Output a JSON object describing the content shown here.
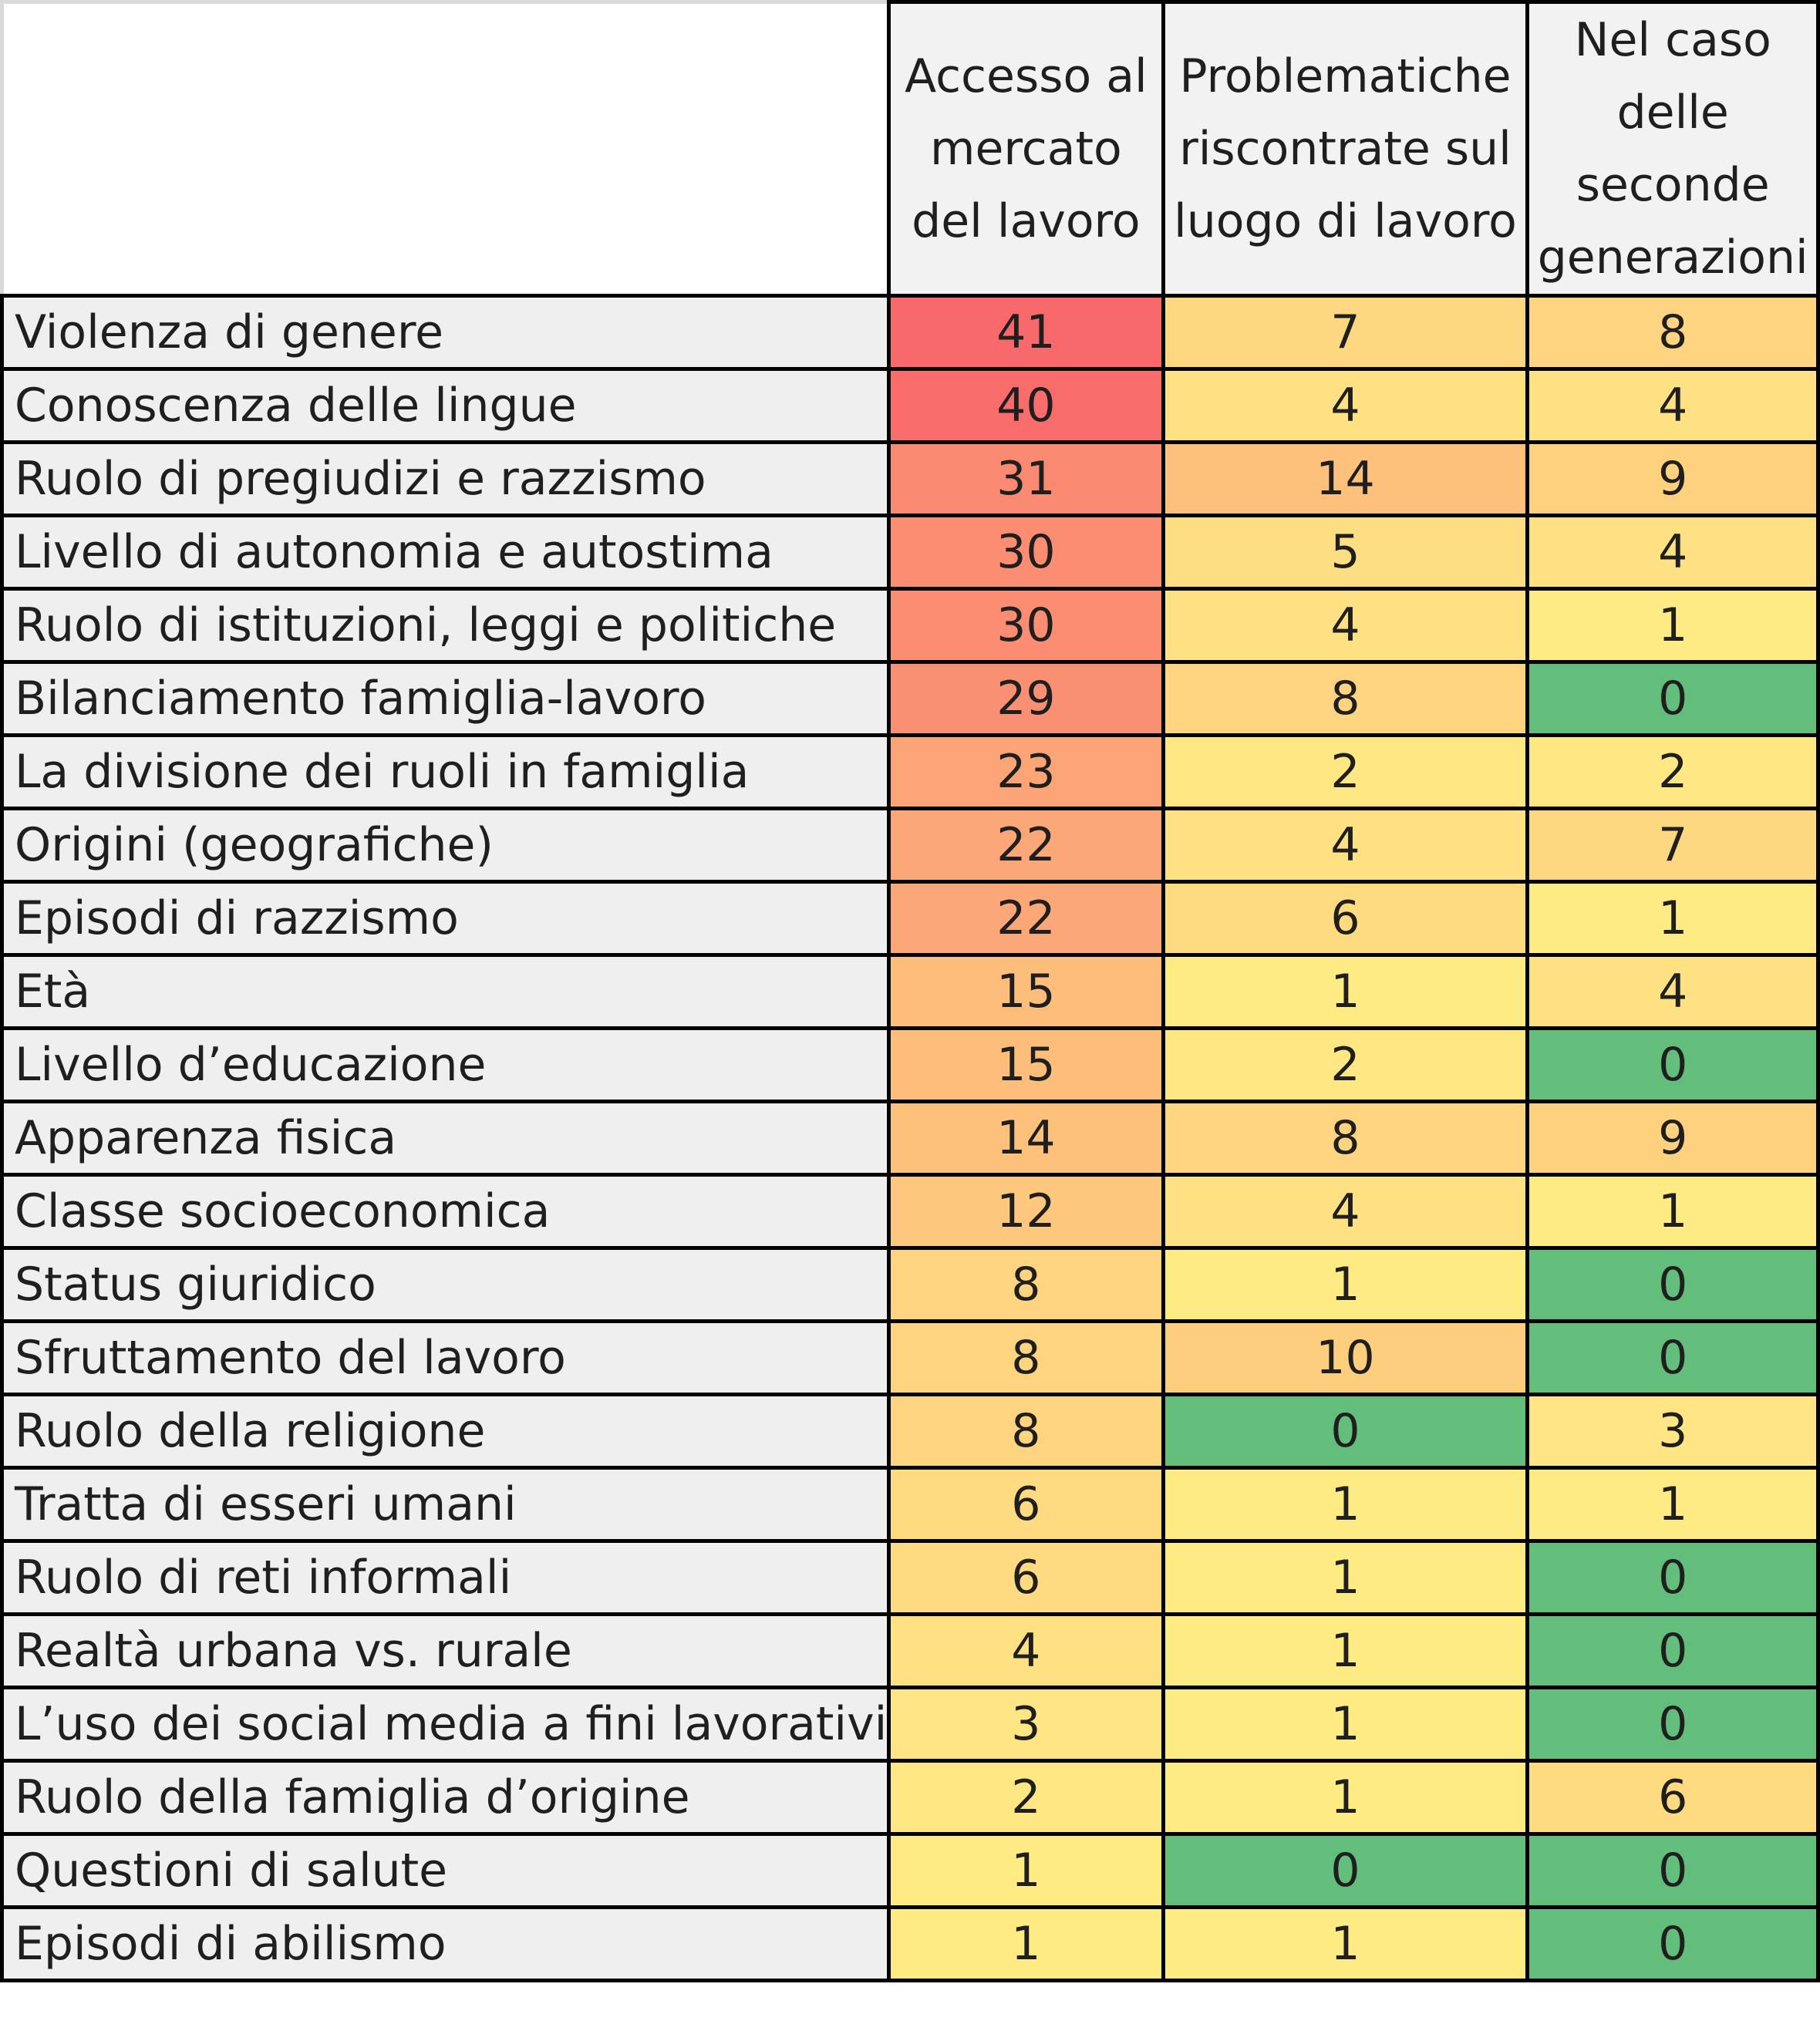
{
  "chart_data": {
    "type": "heatmap",
    "columns": [
      "Accesso al mercato del lavoro",
      "Problematiche riscontrate sul luogo di lavoro",
      "Nel caso delle seconde generazioni"
    ],
    "rows": [
      {
        "label": "Violenza di genere",
        "values": [
          41,
          7,
          8
        ]
      },
      {
        "label": "Conoscenza delle lingue",
        "values": [
          40,
          4,
          4
        ]
      },
      {
        "label": "Ruolo di pregiudizi e razzismo",
        "values": [
          31,
          14,
          9
        ]
      },
      {
        "label": "Livello di autonomia e autostima",
        "values": [
          30,
          5,
          4
        ]
      },
      {
        "label": "Ruolo di istituzioni, leggi e politiche",
        "values": [
          30,
          4,
          1
        ]
      },
      {
        "label": "Bilanciamento famiglia-lavoro",
        "values": [
          29,
          8,
          0
        ]
      },
      {
        "label": "La divisione dei ruoli in famiglia",
        "values": [
          23,
          2,
          2
        ]
      },
      {
        "label": "Origini (geografiche)",
        "values": [
          22,
          4,
          7
        ]
      },
      {
        "label": "Episodi di razzismo",
        "values": [
          22,
          6,
          1
        ]
      },
      {
        "label": "Età",
        "values": [
          15,
          1,
          4
        ]
      },
      {
        "label": "Livello d’educazione",
        "values": [
          15,
          2,
          0
        ]
      },
      {
        "label": "Apparenza fisica",
        "values": [
          14,
          8,
          9
        ]
      },
      {
        "label": "Classe socioeconomica",
        "values": [
          12,
          4,
          1
        ]
      },
      {
        "label": "Status giuridico",
        "values": [
          8,
          1,
          0
        ]
      },
      {
        "label": "Sfruttamento del lavoro",
        "values": [
          8,
          10,
          0
        ]
      },
      {
        "label": "Ruolo della religione",
        "values": [
          8,
          0,
          3
        ]
      },
      {
        "label": "Tratta di esseri umani",
        "values": [
          6,
          1,
          1
        ]
      },
      {
        "label": "Ruolo di reti informali",
        "values": [
          6,
          1,
          0
        ]
      },
      {
        "label": "Realtà urbana vs. rurale",
        "values": [
          4,
          1,
          0
        ]
      },
      {
        "label": "L’uso dei social media a fini lavorativi",
        "values": [
          3,
          1,
          0
        ]
      },
      {
        "label": "Ruolo della famiglia d’origine",
        "values": [
          2,
          1,
          6
        ]
      },
      {
        "label": "Questioni di salute",
        "values": [
          1,
          0,
          0
        ]
      },
      {
        "label": "Episodi di abilismo",
        "values": [
          1,
          1,
          0
        ]
      }
    ],
    "color_scale": {
      "zero": "#63be7b",
      "low": "#ffeb84",
      "high": "#f8696b"
    }
  }
}
